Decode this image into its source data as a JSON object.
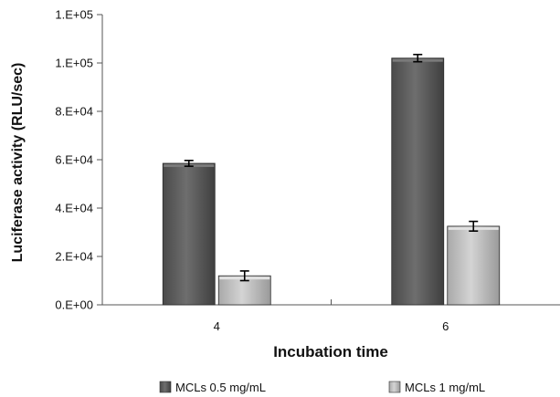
{
  "chart_data": {
    "type": "bar",
    "title": "",
    "xlabel": "Incubation time",
    "ylabel": "Luciferase activity (RLU/sec)",
    "categories": [
      "4",
      "6"
    ],
    "ylim": [
      0,
      120000
    ],
    "y_ticks": [
      0,
      20000,
      40000,
      60000,
      80000,
      100000,
      120000
    ],
    "y_tick_labels": [
      "0.E+00",
      "2.E+04",
      "4.E+04",
      "6.E+04",
      "8.E+04",
      "1.E+05",
      "1.E+05"
    ],
    "grid": false,
    "legend_position": "bottom",
    "series": [
      {
        "name": "MCLs 0.5 mg/mL",
        "values": [
          58500,
          102000
        ],
        "errors": [
          1200,
          1500
        ],
        "color": "#595959"
      },
      {
        "name": "MCLs 1 mg/mL",
        "values": [
          12000,
          32500
        ],
        "errors": [
          2000,
          2000
        ],
        "color": "#bdbdbd"
      }
    ]
  }
}
